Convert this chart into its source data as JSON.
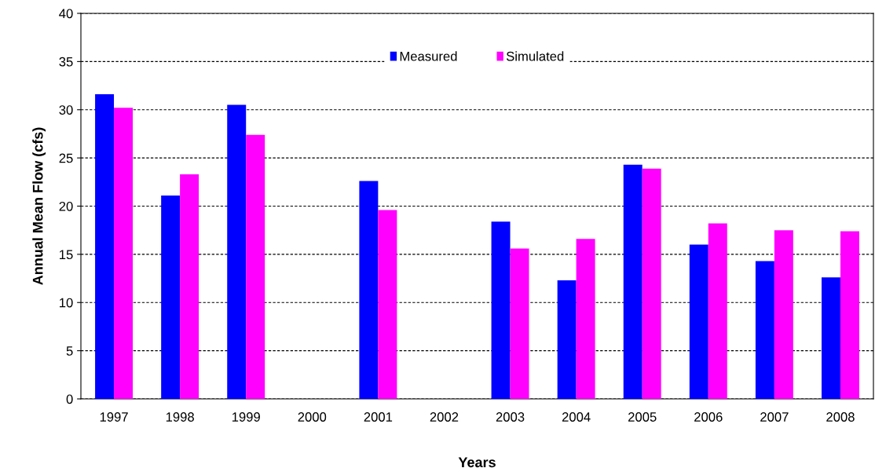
{
  "chart_data": {
    "type": "bar",
    "xlabel": "Years",
    "ylabel": "Annual Mean Flow (cfs)",
    "categories": [
      "1997",
      "1998",
      "1999",
      "2000",
      "2001",
      "2002",
      "2003",
      "2004",
      "2005",
      "2006",
      "2007",
      "2008"
    ],
    "series": [
      {
        "name": "Measured",
        "color": "#0000ff",
        "values": [
          31.6,
          21.1,
          30.5,
          null,
          22.6,
          null,
          18.4,
          12.3,
          24.3,
          16.0,
          14.3,
          12.6
        ]
      },
      {
        "name": "Simulated",
        "color": "#ff00ff",
        "values": [
          30.2,
          23.3,
          27.4,
          null,
          19.6,
          null,
          15.6,
          16.6,
          23.9,
          18.2,
          17.5,
          17.4
        ]
      }
    ],
    "ylim": [
      0,
      40
    ],
    "yticks": [
      0,
      5,
      10,
      15,
      20,
      25,
      30,
      35,
      40
    ],
    "grid": "y",
    "legend": "top"
  }
}
